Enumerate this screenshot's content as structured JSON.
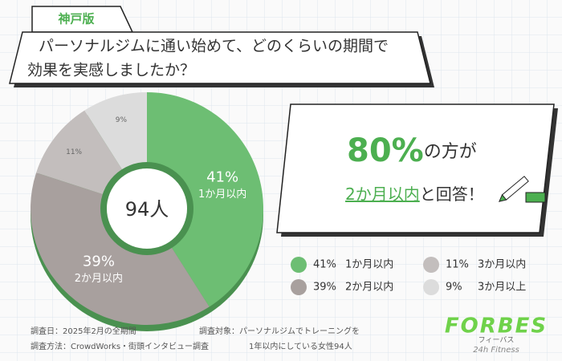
{
  "edition": "神戸版",
  "title_lines": [
    "パーソナルジムに通い始めて、どのくらいの期間で",
    "効果を実感しましたか？"
  ],
  "chart_data": {
    "type": "donut",
    "categories": [
      "1か月以内",
      "2か月以内",
      "3か月以内",
      "3か月以上"
    ],
    "values": [
      41,
      39,
      11,
      9
    ],
    "value_labels": [
      "41%",
      "39%",
      "11%",
      "9%"
    ],
    "colors": [
      "#6dbe73",
      "#a8a09e",
      "#c3bebd",
      "#dcdcdc"
    ],
    "center_label": "94人"
  },
  "callout": {
    "highlight": "80%",
    "text": "の方が",
    "highlight2": "2か月以内",
    "text2": "と回答！"
  },
  "footer": [
    "調査日：2025年2月の全期間",
    "調査対象：パーソナルジムでトレーニングを",
    "調査方法：CrowdWorks・街頭インタビュー調査",
    "1年以内にしている女性94人"
  ],
  "logo": {
    "name": "FORBES",
    "kana": "フィーバス",
    "tagline": "24h Fitness"
  }
}
